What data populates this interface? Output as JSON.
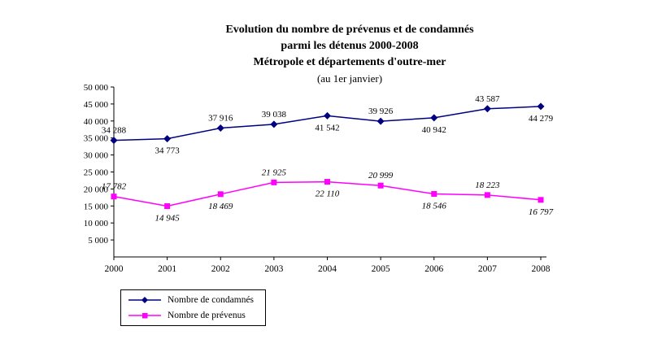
{
  "title": {
    "line1": "Evolution du nombre de prévenus et de condamnés",
    "line2": "parmi les détenus 2000-2008",
    "line3": "Métropole et départements d'outre-mer",
    "line4": "(au 1er janvier)"
  },
  "chart_data": {
    "type": "line",
    "title": "Evolution du nombre de prévenus et de condamnés parmi les détenus 2000-2008 — Métropole et départements d'outre-mer (au 1er janvier)",
    "x": [
      2000,
      2001,
      2002,
      2003,
      2004,
      2005,
      2006,
      2007,
      2008
    ],
    "series": [
      {
        "name": "Nombre de condamnés",
        "color": "#000080",
        "marker": "diamond",
        "values": [
          34288,
          34773,
          37916,
          39038,
          41542,
          39926,
          40942,
          43587,
          44279
        ],
        "labels": [
          "34 288",
          "34 773",
          "37 916",
          "39 038",
          "41 542",
          "39 926",
          "40 942",
          "43 587",
          "44 279"
        ],
        "label_positions": [
          "above",
          "below",
          "above",
          "above",
          "below",
          "above",
          "below",
          "above",
          "below"
        ],
        "label_style": "normal"
      },
      {
        "name": "Nombre de prévenus",
        "color": "#FF00FF",
        "marker": "square",
        "values": [
          17782,
          14945,
          18469,
          21925,
          22110,
          20999,
          18546,
          18223,
          16797
        ],
        "labels": [
          "17 782",
          "14 945",
          "18 469",
          "21 925",
          "22 110",
          "20 999",
          "18 546",
          "18 223",
          "16 797"
        ],
        "label_positions": [
          "above",
          "below",
          "below",
          "above",
          "below",
          "above",
          "below",
          "above",
          "below"
        ],
        "label_style": "italic"
      }
    ],
    "xlabel": "",
    "ylabel": "",
    "ylim": [
      0,
      50000
    ],
    "ytick_step": 5000,
    "ytick_labels": [
      "50 000",
      "45 000",
      "40 000",
      "35 000",
      "30 000",
      "25 000",
      "20 000",
      "15 000",
      "10 000",
      "5 000"
    ],
    "grid": "off",
    "legend_position": "bottom-left"
  },
  "legend": {
    "items": [
      {
        "label": "Nombre de condamnés"
      },
      {
        "label": "Nombre de prévenus"
      }
    ]
  }
}
